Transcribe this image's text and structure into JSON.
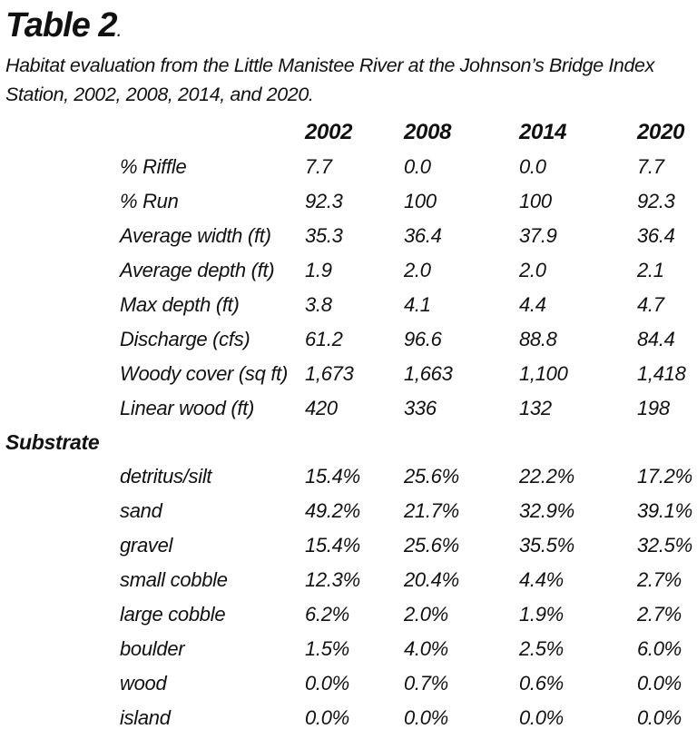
{
  "table": {
    "title": "Table 2",
    "title_suffix": ".",
    "caption": "Habitat evaluation from the Little Manistee River at the Johnson’s Bridge Index Station, 2002, 2008, 2014, and 2020.",
    "columns": [
      "2002",
      "2008",
      "2014",
      "2020"
    ],
    "rows": [
      {
        "label": "% Riffle",
        "values": [
          "7.7",
          "0.0",
          "0.0",
          "7.7"
        ]
      },
      {
        "label": "% Run",
        "values": [
          "92.3",
          "100",
          "100",
          "92.3"
        ]
      },
      {
        "label": "Average width (ft)",
        "values": [
          "35.3",
          "36.4",
          "37.9",
          "36.4"
        ]
      },
      {
        "label": "Average depth (ft)",
        "values": [
          "1.9",
          "2.0",
          "2.0",
          "2.1"
        ]
      },
      {
        "label": "Max depth (ft)",
        "values": [
          "3.8",
          "4.1",
          "4.4",
          "4.7"
        ]
      },
      {
        "label": "Discharge (cfs)",
        "values": [
          "61.2",
          "96.6",
          "88.8",
          "84.4"
        ]
      },
      {
        "label": "Woody cover (sq ft)",
        "values": [
          "1,673",
          "1,663",
          "1,100",
          "1,418"
        ]
      },
      {
        "label": "Linear wood (ft)",
        "values": [
          "420",
          "336",
          "132",
          "198"
        ]
      }
    ],
    "substrate_label": "Substrate",
    "substrate_rows": [
      {
        "label": "detritus/silt",
        "values": [
          "15.4%",
          "25.6%",
          "22.2%",
          "17.2%"
        ]
      },
      {
        "label": "sand",
        "values": [
          "49.2%",
          "21.7%",
          "32.9%",
          "39.1%"
        ]
      },
      {
        "label": "gravel",
        "values": [
          "15.4%",
          "25.6%",
          "35.5%",
          "32.5%"
        ]
      },
      {
        "label": "small cobble",
        "values": [
          "12.3%",
          "20.4%",
          "4.4%",
          "2.7%"
        ]
      },
      {
        "label": "large cobble",
        "values": [
          "6.2%",
          "2.0%",
          "1.9%",
          "2.7%"
        ]
      },
      {
        "label": "boulder",
        "values": [
          "1.5%",
          "4.0%",
          "2.5%",
          "6.0%"
        ]
      },
      {
        "label": "wood",
        "values": [
          "0.0%",
          "0.7%",
          "0.6%",
          "0.0%"
        ]
      },
      {
        "label": "island",
        "values": [
          "0.0%",
          "0.0%",
          "0.0%",
          "0.0%"
        ]
      }
    ]
  }
}
